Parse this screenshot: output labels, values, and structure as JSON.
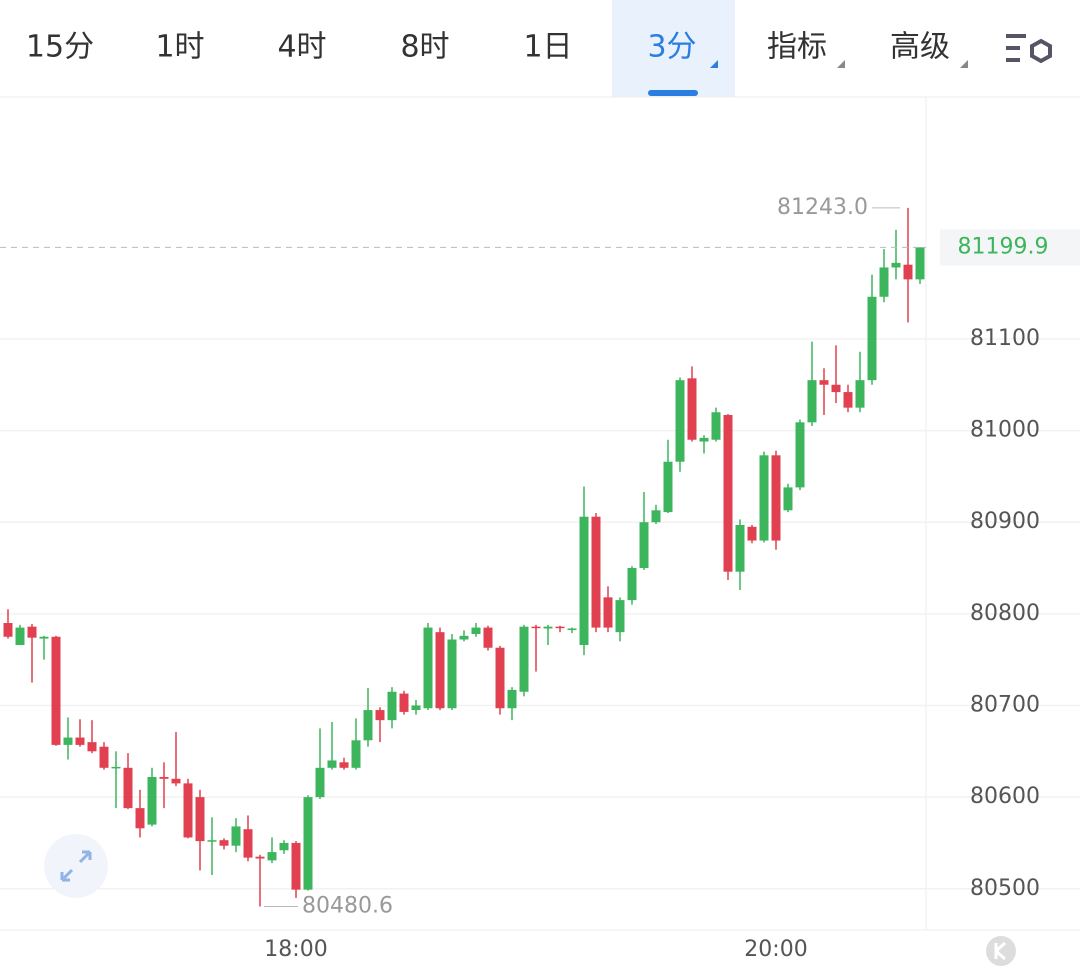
{
  "tabs": [
    "15分",
    "1时",
    "4时",
    "8时",
    "1日",
    "3分",
    "指标",
    "高级"
  ],
  "selected_tab": 5,
  "chart_data": {
    "type": "candlestick",
    "categories": [
      null,
      null,
      null,
      null,
      null,
      null,
      null,
      null,
      null,
      null,
      null,
      null,
      null,
      null,
      null,
      null,
      null,
      null,
      null,
      null,
      null,
      null,
      null,
      null,
      "18:00",
      null,
      null,
      null,
      null,
      null,
      null,
      null,
      null,
      null,
      null,
      null,
      null,
      null,
      null,
      null,
      null,
      null,
      null,
      null,
      null,
      null,
      null,
      null,
      null,
      null,
      null,
      null,
      null,
      null,
      null,
      null,
      null,
      null,
      null,
      null,
      null,
      null,
      null,
      null,
      "20:00",
      null,
      null,
      null,
      null,
      null,
      null,
      null,
      null,
      null,
      null,
      null,
      null
    ],
    "open": [
      80790,
      80766,
      80786,
      80773,
      80775,
      80657,
      80665,
      80660,
      80655,
      80632,
      80632,
      80588,
      80570,
      80622,
      80620,
      80615,
      80600,
      80552,
      80553,
      80547,
      80565,
      80535,
      80531,
      80542,
      80550,
      80499,
      80600,
      80632,
      80638,
      80632,
      80662,
      80695,
      80684,
      80713,
      80695,
      80697,
      80780,
      80697,
      80772,
      80778,
      80785,
      80763,
      80697,
      80715,
      80786,
      80784,
      80786,
      80783,
      80766,
      80906,
      80818,
      80780,
      80815,
      80850,
      80900,
      80911,
      80966,
      81057,
      80988,
      80990,
      81017,
      80846,
      80895,
      80880,
      80973,
      80913,
      80938,
      81009,
      81055,
      81050,
      81042,
      81025,
      81055,
      81146,
      81178,
      81181,
      81165
    ],
    "high": [
      80805,
      80788,
      80789,
      80776,
      80776,
      80687,
      80685,
      80684,
      80660,
      80650,
      80648,
      80608,
      80632,
      80638,
      80671,
      80620,
      80608,
      80578,
      80555,
      80577,
      80580,
      80537,
      80556,
      80553,
      80552,
      80602,
      80675,
      80682,
      80643,
      80686,
      80719,
      80698,
      80720,
      80716,
      80706,
      80790,
      80785,
      80778,
      80782,
      80790,
      80787,
      80765,
      80720,
      80788,
      80788,
      80788,
      80787,
      80785,
      80939,
      80910,
      80830,
      80818,
      80852,
      80933,
      80919,
      80990,
      81058,
      81070,
      80995,
      81025,
      81018,
      80903,
      80897,
      80977,
      80978,
      80942,
      81012,
      81097,
      81068,
      81093,
      81050,
      81086,
      81170,
      81198,
      81219,
      81243,
      81200
    ],
    "low": [
      80773,
      80766,
      80725,
      80750,
      80656,
      80641,
      80655,
      80648,
      80630,
      80588,
      80587,
      80556,
      80568,
      80588,
      80612,
      80555,
      80520,
      80515,
      80543,
      80540,
      80530,
      80480.6,
      80528,
      80538,
      80490,
      80498,
      80598,
      80630,
      80630,
      80630,
      80655,
      80660,
      80675,
      80690,
      80690,
      80695,
      80695,
      80695,
      80770,
      80775,
      80760,
      80690,
      80684,
      80710,
      80737,
      80766,
      80780,
      80779,
      80755,
      80780,
      80780,
      80770,
      80810,
      80848,
      80898,
      80910,
      80955,
      80988,
      80975,
      80988,
      80837,
      80826,
      80877,
      80878,
      80870,
      80911,
      80935,
      81005,
      81017,
      81030,
      81020,
      81020,
      81050,
      81140,
      81165,
      81118,
      81160
    ],
    "close": [
      80775,
      80785,
      80774,
      80775,
      80657,
      80665,
      80657,
      80650,
      80632,
      80633,
      80588,
      80566,
      80622,
      80620,
      80615,
      80556,
      80552,
      80553,
      80547,
      80568,
      80534,
      80533,
      80540,
      80550,
      80499,
      80600,
      80632,
      80640,
      80632,
      80662,
      80695,
      80684,
      80715,
      80693,
      80700,
      80785,
      80697,
      80772,
      80776,
      80785,
      80763,
      80697,
      80717,
      80786,
      80785,
      80786,
      80785,
      80784,
      80906,
      80785,
      80785,
      80815,
      80850,
      80900,
      80913,
      80966,
      81055,
      80990,
      80992,
      81020,
      80846,
      80897,
      80880,
      80973,
      80880,
      80938,
      81009,
      81055,
      81050,
      81042,
      81025,
      81055,
      81146,
      81178,
      81183,
      81165,
      81199.9
    ],
    "up_color": "#3cb55c",
    "down_color": "#e0404f",
    "ylim": [
      80455,
      81364
    ],
    "yticks": [
      80500,
      80600,
      80700,
      80800,
      80900,
      81000,
      81100
    ],
    "grid": true,
    "high_label": {
      "value": 81243,
      "label": "81243.0"
    },
    "low_label": 80480.6,
    "last_price": 81199.9
  }
}
